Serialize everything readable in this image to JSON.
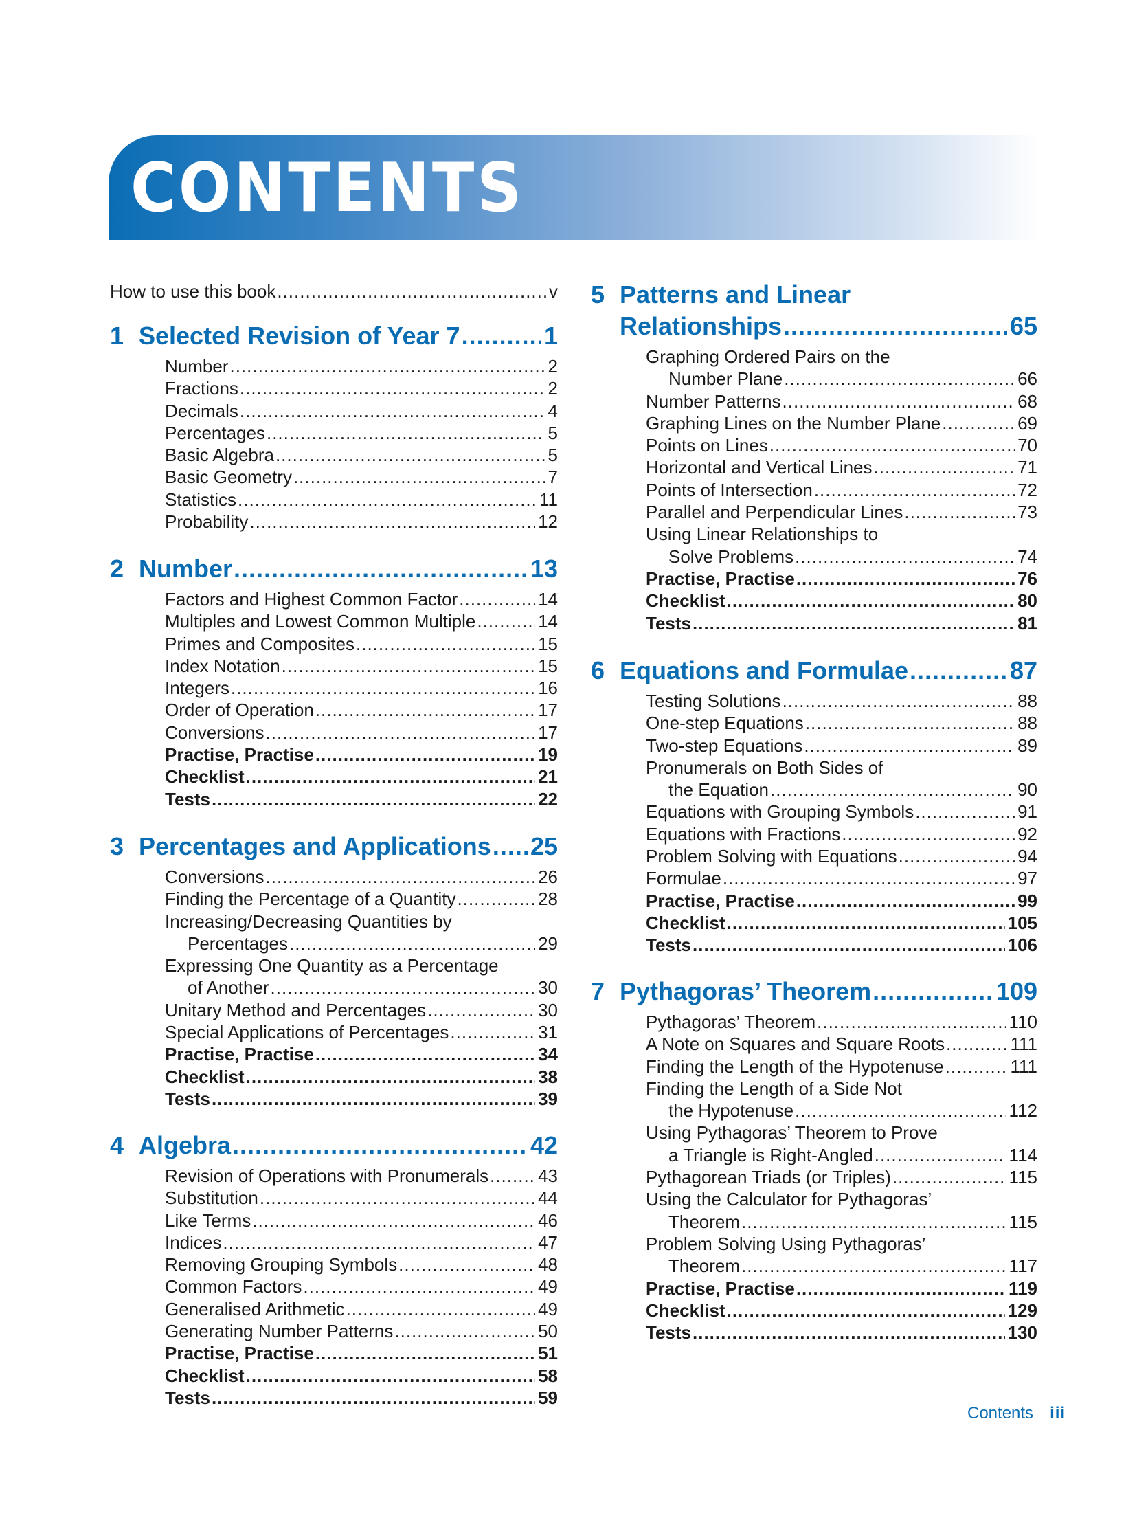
{
  "header": {
    "title": "CONTENTS",
    "banner_color": "#0a6db4"
  },
  "intro": {
    "title": "How to use this book",
    "page": "v"
  },
  "left_chapters": [
    {
      "number": "1",
      "title": "Selected Revision of Year 7",
      "page": "1",
      "entries": [
        {
          "lines": [
            "Number"
          ],
          "page": "2"
        },
        {
          "lines": [
            "Fractions"
          ],
          "page": "2"
        },
        {
          "lines": [
            "Decimals"
          ],
          "page": "4"
        },
        {
          "lines": [
            "Percentages"
          ],
          "page": "5"
        },
        {
          "lines": [
            "Basic Algebra"
          ],
          "page": "5"
        },
        {
          "lines": [
            "Basic Geometry"
          ],
          "page": "7"
        },
        {
          "lines": [
            "Statistics"
          ],
          "page": "11"
        },
        {
          "lines": [
            "Probability"
          ],
          "page": "12"
        }
      ]
    },
    {
      "number": "2",
      "title": "Number",
      "page": "13",
      "entries": [
        {
          "lines": [
            "Factors and Highest Common Factor"
          ],
          "page": "14"
        },
        {
          "lines": [
            "Multiples and Lowest Common Multiple"
          ],
          "page": "14"
        },
        {
          "lines": [
            "Primes and Composites"
          ],
          "page": "15"
        },
        {
          "lines": [
            "Index Notation"
          ],
          "page": "15"
        },
        {
          "lines": [
            "Integers"
          ],
          "page": "16"
        },
        {
          "lines": [
            "Order of Operation"
          ],
          "page": "17"
        },
        {
          "lines": [
            "Conversions"
          ],
          "page": "17"
        },
        {
          "lines": [
            "Practise, Practise"
          ],
          "page": "19",
          "bold": true
        },
        {
          "lines": [
            "Checklist"
          ],
          "page": "21",
          "bold": true
        },
        {
          "lines": [
            "Tests"
          ],
          "page": "22",
          "bold": true
        }
      ]
    },
    {
      "number": "3",
      "title": "Percentages and Applications",
      "page": "25",
      "entries": [
        {
          "lines": [
            "Conversions"
          ],
          "page": "26"
        },
        {
          "lines": [
            "Finding the Percentage of a Quantity"
          ],
          "page": "28"
        },
        {
          "lines": [
            "Increasing/Decreasing Quantities by",
            "Percentages"
          ],
          "page": "29"
        },
        {
          "lines": [
            "Expressing One Quantity as a Percentage",
            "of Another"
          ],
          "page": "30"
        },
        {
          "lines": [
            "Unitary Method and Percentages"
          ],
          "page": "30"
        },
        {
          "lines": [
            "Special Applications of Percentages"
          ],
          "page": "31"
        },
        {
          "lines": [
            "Practise, Practise"
          ],
          "page": "34",
          "bold": true
        },
        {
          "lines": [
            "Checklist"
          ],
          "page": "38",
          "bold": true
        },
        {
          "lines": [
            "Tests"
          ],
          "page": "39",
          "bold": true
        }
      ]
    },
    {
      "number": "4",
      "title": "Algebra",
      "page": "42",
      "entries": [
        {
          "lines": [
            "Revision of Operations with Pronumerals"
          ],
          "page": "43"
        },
        {
          "lines": [
            "Substitution"
          ],
          "page": "44"
        },
        {
          "lines": [
            "Like Terms"
          ],
          "page": "46"
        },
        {
          "lines": [
            "Indices"
          ],
          "page": "47"
        },
        {
          "lines": [
            "Removing Grouping Symbols"
          ],
          "page": "48"
        },
        {
          "lines": [
            "Common Factors"
          ],
          "page": "49"
        },
        {
          "lines": [
            "Generalised Arithmetic"
          ],
          "page": "49"
        },
        {
          "lines": [
            "Generating Number Patterns"
          ],
          "page": "50"
        },
        {
          "lines": [
            "Practise, Practise"
          ],
          "page": "51",
          "bold": true
        },
        {
          "lines": [
            "Checklist"
          ],
          "page": "58",
          "bold": true
        },
        {
          "lines": [
            "Tests"
          ],
          "page": "59",
          "bold": true
        }
      ]
    }
  ],
  "right_chapters": [
    {
      "number": "5",
      "title_lines": [
        "Patterns and Linear",
        "Relationships"
      ],
      "page": "65",
      "entries": [
        {
          "lines": [
            "Graphing Ordered Pairs on the",
            "Number Plane"
          ],
          "page": "66"
        },
        {
          "lines": [
            "Number Patterns"
          ],
          "page": "68"
        },
        {
          "lines": [
            "Graphing Lines on the Number Plane"
          ],
          "page": "69"
        },
        {
          "lines": [
            "Points on Lines"
          ],
          "page": "70"
        },
        {
          "lines": [
            "Horizontal and Vertical Lines"
          ],
          "page": "71"
        },
        {
          "lines": [
            "Points of Intersection"
          ],
          "page": "72"
        },
        {
          "lines": [
            "Parallel and Perpendicular Lines"
          ],
          "page": "73"
        },
        {
          "lines": [
            "Using Linear Relationships to",
            "Solve Problems"
          ],
          "page": "74"
        },
        {
          "lines": [
            "Practise, Practise"
          ],
          "page": "76",
          "bold": true
        },
        {
          "lines": [
            "Checklist"
          ],
          "page": "80",
          "bold": true
        },
        {
          "lines": [
            "Tests"
          ],
          "page": "81",
          "bold": true
        }
      ]
    },
    {
      "number": "6",
      "title_lines": [
        "Equations and Formulae"
      ],
      "page": "87",
      "entries": [
        {
          "lines": [
            "Testing Solutions"
          ],
          "page": "88"
        },
        {
          "lines": [
            "One-step Equations"
          ],
          "page": "88"
        },
        {
          "lines": [
            "Two-step Equations"
          ],
          "page": "89"
        },
        {
          "lines": [
            "Pronumerals on Both Sides of",
            "the Equation"
          ],
          "page": "90"
        },
        {
          "lines": [
            "Equations with Grouping Symbols"
          ],
          "page": "91"
        },
        {
          "lines": [
            "Equations with Fractions"
          ],
          "page": "92"
        },
        {
          "lines": [
            "Problem Solving with Equations"
          ],
          "page": "94"
        },
        {
          "lines": [
            "Formulae"
          ],
          "page": "97"
        },
        {
          "lines": [
            "Practise, Practise"
          ],
          "page": "99",
          "bold": true
        },
        {
          "lines": [
            "Checklist"
          ],
          "page": "105",
          "bold": true
        },
        {
          "lines": [
            "Tests"
          ],
          "page": "106",
          "bold": true
        }
      ]
    },
    {
      "number": "7",
      "title_lines": [
        "Pythagoras’ Theorem"
      ],
      "page": "109",
      "entries": [
        {
          "lines": [
            "Pythagoras’ Theorem"
          ],
          "page": "110"
        },
        {
          "lines": [
            "A Note on Squares and Square Roots"
          ],
          "page": "111"
        },
        {
          "lines": [
            "Finding the Length of the Hypotenuse"
          ],
          "page": "111"
        },
        {
          "lines": [
            "Finding the Length of a Side Not",
            "the Hypotenuse"
          ],
          "page": "112"
        },
        {
          "lines": [
            "Using Pythagoras’ Theorem to Prove",
            "a Triangle is Right-Angled"
          ],
          "page": "114"
        },
        {
          "lines": [
            "Pythagorean Triads (or Triples)"
          ],
          "page": "115"
        },
        {
          "lines": [
            "Using the Calculator for Pythagoras’",
            "Theorem"
          ],
          "page": "115"
        },
        {
          "lines": [
            "Problem Solving Using Pythagoras’",
            "Theorem"
          ],
          "page": "117"
        },
        {
          "lines": [
            "Practise, Practise"
          ],
          "page": "119",
          "bold": true
        },
        {
          "lines": [
            "Checklist"
          ],
          "page": "129",
          "bold": true
        },
        {
          "lines": [
            "Tests"
          ],
          "page": "130",
          "bold": true
        }
      ]
    }
  ],
  "footer": {
    "label": "Contents",
    "page": "iii"
  }
}
